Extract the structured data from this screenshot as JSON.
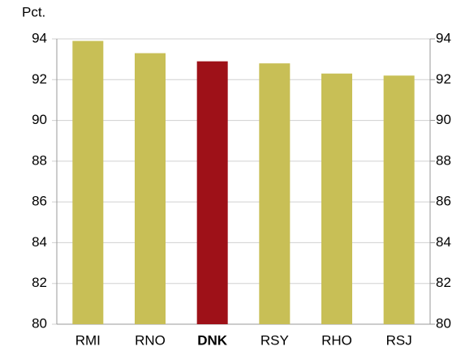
{
  "chart_data": {
    "type": "bar",
    "y_label": "Pct.",
    "categories": [
      "RMI",
      "RNO",
      "DNK",
      "RSY",
      "RHO",
      "RSJ"
    ],
    "values": [
      93.9,
      93.3,
      92.9,
      92.8,
      92.3,
      92.2
    ],
    "color": "#c8bf56",
    "highlight_color": "#9e1118",
    "highlight": 2,
    "ylim": [
      80,
      94
    ],
    "yticks": [
      80,
      82,
      84,
      86,
      88,
      90,
      92,
      94
    ],
    "y2lim": [
      80,
      94
    ],
    "y2ticks": [
      80,
      82,
      84,
      86,
      88,
      90,
      92,
      94
    ],
    "grid": true
  }
}
